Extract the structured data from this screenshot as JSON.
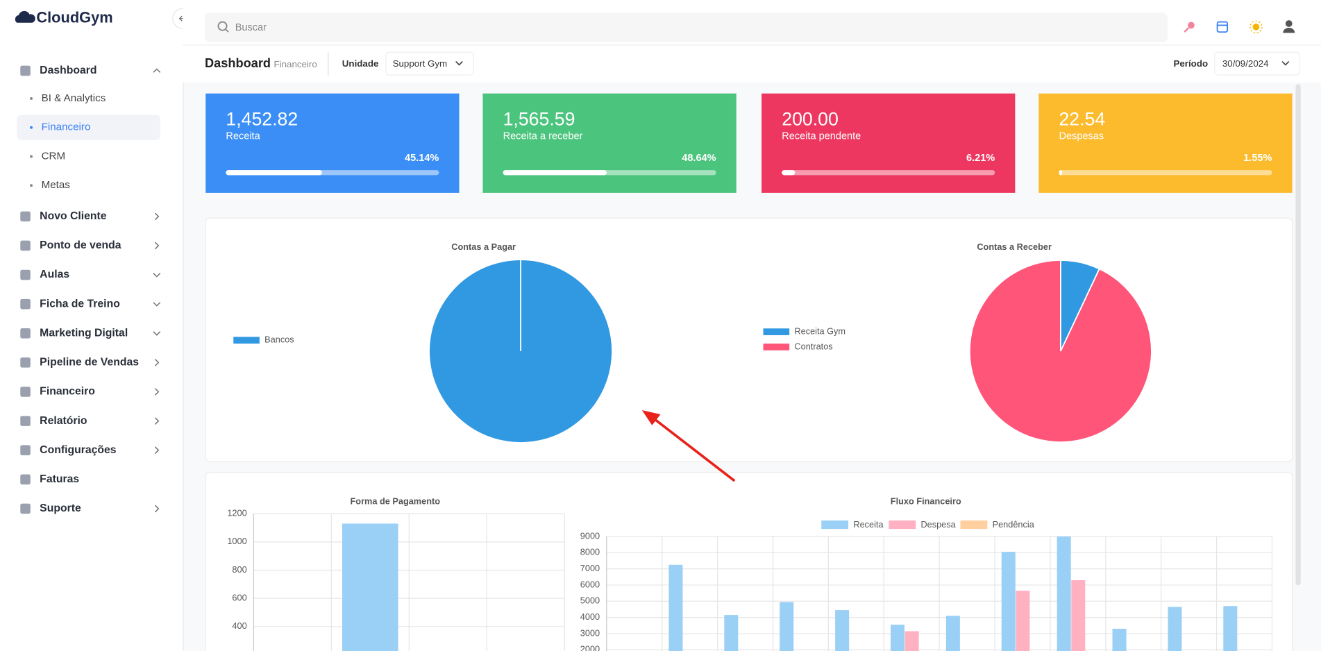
{
  "sidebar": {
    "logo": "CloudGym",
    "menu": [
      {
        "label": "Dashboard",
        "children": [
          "BI & Analytics",
          "Financeiro",
          "CRM",
          "Metas"
        ]
      },
      {
        "label": "Novo Cliente"
      },
      {
        "label": "Ponto de venda"
      },
      {
        "label": "Aulas"
      },
      {
        "label": "Ficha de Treino"
      },
      {
        "label": "Marketing Digital"
      },
      {
        "label": "Pipeline de Vendas"
      },
      {
        "label": "Financeiro"
      },
      {
        "label": "Relatório"
      },
      {
        "label": "Configurações"
      },
      {
        "label": "Faturas"
      },
      {
        "label": "Suporte"
      }
    ]
  },
  "search_placeholder": "Buscar",
  "header": {
    "title": "Dashboard",
    "subtitle": "Financeiro",
    "unit_label": "Unidade",
    "unit_value": "Support Gym",
    "period_label": "Período",
    "period_value": "30/09/2024"
  },
  "cards": [
    {
      "value": "1,452.82",
      "label": "Receita",
      "percent": "45.14%",
      "progress": 45.14,
      "color": "#3a8ef6"
    },
    {
      "value": "1,565.59",
      "label": "Receita a receber",
      "percent": "48.64%",
      "progress": 48.64,
      "color": "#4bc47d"
    },
    {
      "value": "200.00",
      "label": "Receita pendente",
      "percent": "6.21%",
      "progress": 6.21,
      "color": "#ee3760"
    },
    {
      "value": "22.54",
      "label": "Despesas",
      "percent": "1.55%",
      "progress": 1.55,
      "color": "#fbbb2d"
    }
  ],
  "chart_data": [
    {
      "type": "pie",
      "title": "Contas a Pagar",
      "categories": [
        "Bancos"
      ],
      "values": [
        100
      ],
      "colors": [
        "#3198e2"
      ]
    },
    {
      "type": "pie",
      "title": "Contas a Receber",
      "categories": [
        "Receita Gym",
        "Contratos"
      ],
      "values": [
        7,
        93
      ],
      "colors": [
        "#3198e2",
        "#fe5579"
      ]
    },
    {
      "type": "bar",
      "title": "Forma de Pagamento",
      "categories": [
        null,
        null,
        null,
        null
      ],
      "values": [
        0,
        1130,
        0,
        0
      ],
      "color": "#9ad0f5",
      "ylim": [
        0,
        1200
      ],
      "yticks": [
        400,
        600,
        800,
        1000,
        1200
      ],
      "grid": true
    },
    {
      "type": "bar",
      "title": "Fluxo Financeiro",
      "categories": [
        null,
        null,
        null,
        null,
        null,
        null,
        null,
        null,
        null,
        null,
        null,
        null
      ],
      "series": [
        {
          "name": "Receita",
          "color": "#9ad0f5",
          "values": [
            0,
            7250,
            4150,
            4950,
            4450,
            3550,
            4100,
            8050,
            9000,
            3300,
            4650,
            4700
          ]
        },
        {
          "name": "Despesa",
          "color": "#ffb1c1",
          "values": [
            0,
            0,
            0,
            0,
            0,
            3150,
            0,
            5650,
            6300,
            0,
            0,
            0
          ]
        },
        {
          "name": "Pendência",
          "color": "#ffcf9f",
          "values": [
            0,
            0,
            0,
            0,
            0,
            0,
            0,
            0,
            0,
            0,
            0,
            0
          ]
        }
      ],
      "ylim": [
        0,
        9000
      ],
      "yticks": [
        2000,
        3000,
        4000,
        5000,
        6000,
        7000,
        8000,
        9000
      ],
      "grid": true
    }
  ]
}
